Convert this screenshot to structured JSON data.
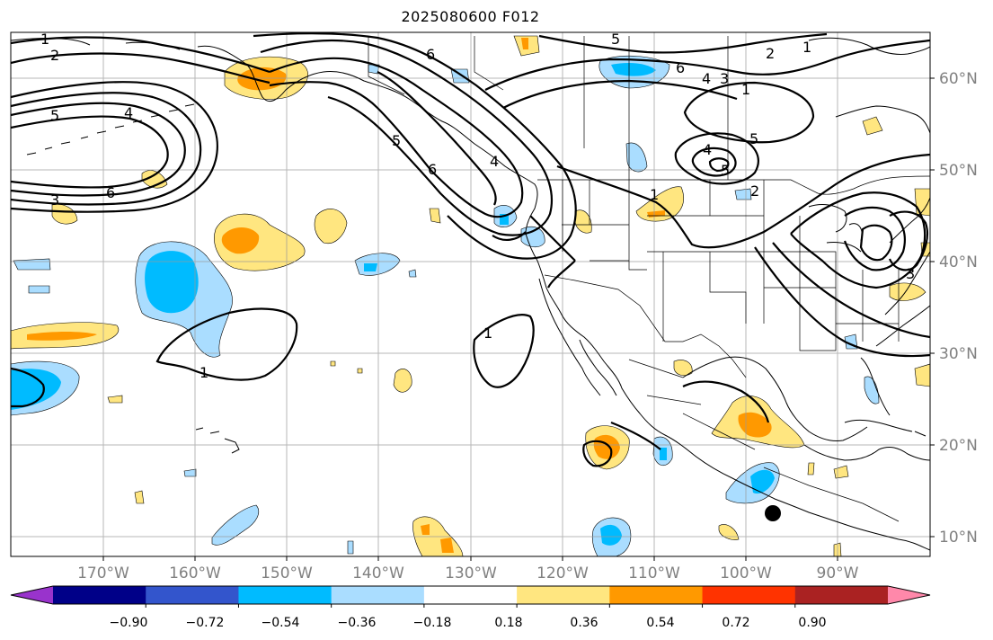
{
  "title": "2025080600 F012",
  "lon_labels": [
    "170°W",
    "160°W",
    "150°W",
    "140°W",
    "130°W",
    "120°W",
    "110°W",
    "100°W",
    "90°W"
  ],
  "lat_labels": [
    "60°N",
    "50°N",
    "40°N",
    "30°N",
    "20°N",
    "10°N"
  ],
  "colorbar": {
    "colors": [
      "#9933cc",
      "#000088",
      "#3355cc",
      "#00bbff",
      "#aaddff",
      "#ffffff",
      "#ffe680",
      "#ff9900",
      "#ff3300",
      "#aa2222",
      "#ff88aa"
    ],
    "tick_labels": [
      "−0.90",
      "−0.72",
      "−0.54",
      "−0.36",
      "−0.18",
      "0.18",
      "0.36",
      "0.54",
      "0.72",
      "0.90"
    ]
  },
  "contour_labels": [
    "1",
    "2",
    "5",
    "4",
    "6",
    "3",
    "5",
    "6",
    "5",
    "6",
    "4",
    "3",
    "1",
    "2",
    "1",
    "5",
    "4",
    "5",
    "2",
    "1",
    "1",
    "6",
    "1",
    "4",
    "3"
  ],
  "marker": {
    "type": "filled-circle",
    "color": "#000000"
  }
}
